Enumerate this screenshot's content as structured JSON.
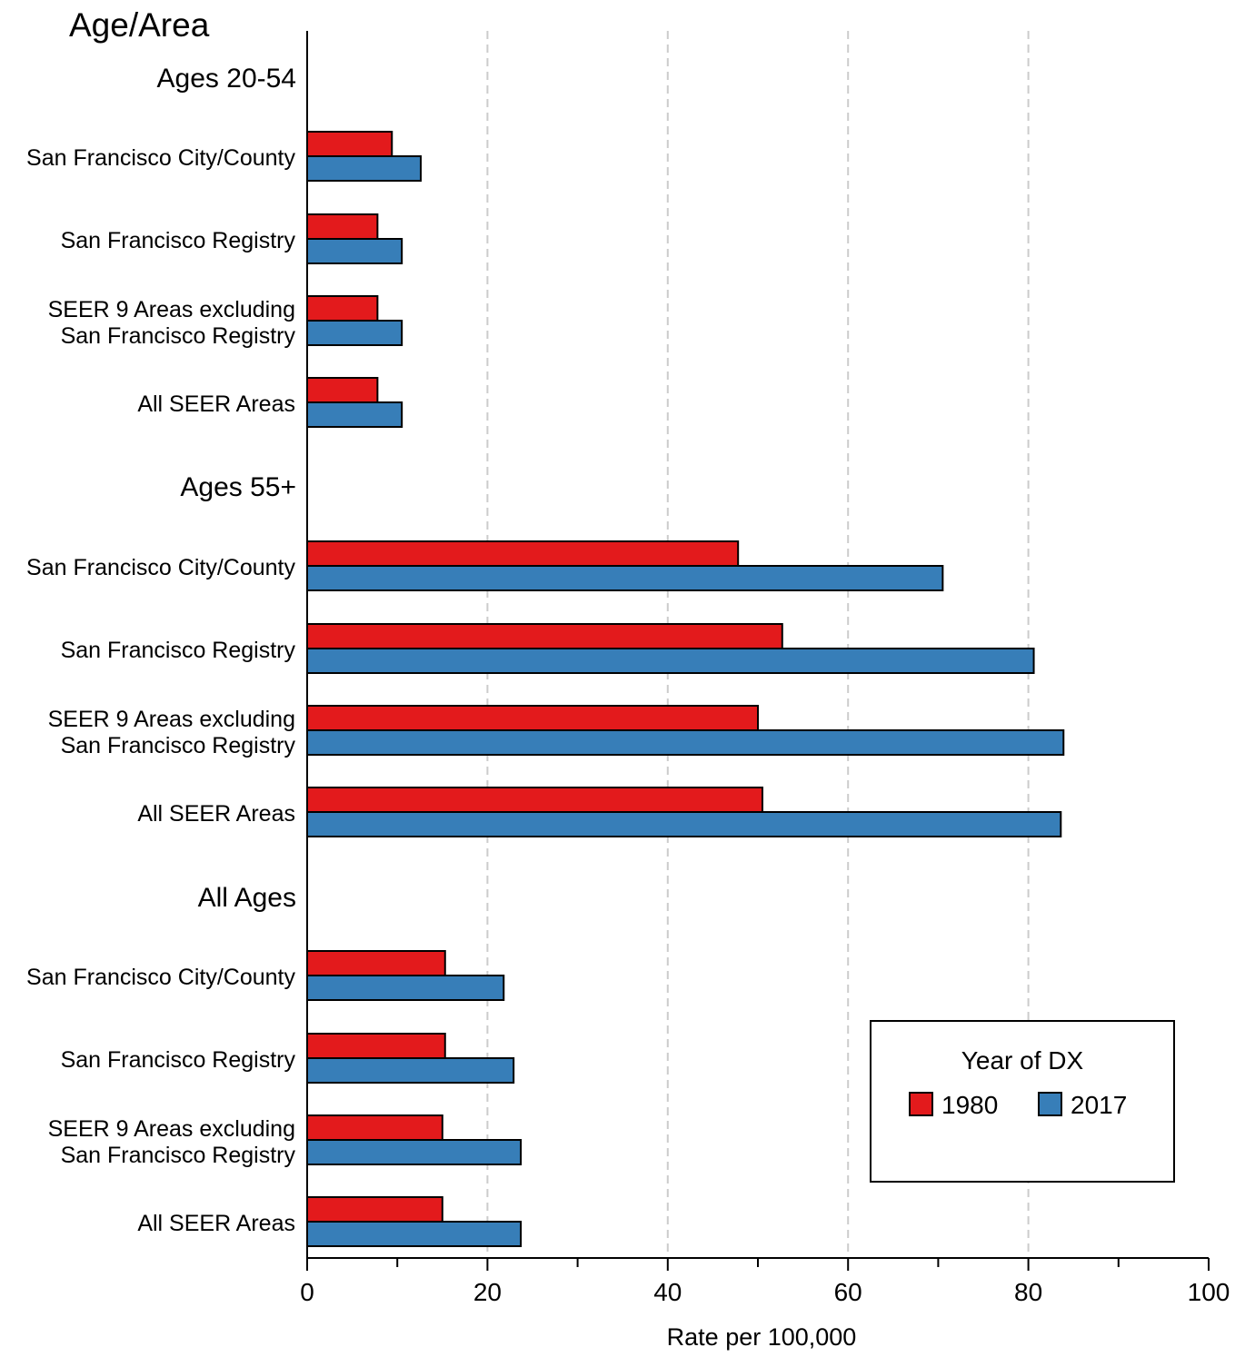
{
  "chart_data": {
    "type": "bar",
    "orientation": "horizontal",
    "y_axis_title": "Age/Area",
    "xlabel": "Rate per 100,000",
    "xlim": [
      0,
      100
    ],
    "x_ticks": [
      "0",
      "20",
      "40",
      "60",
      "80",
      "100"
    ],
    "grid": "vertical dashed",
    "legend": {
      "title": "Year of DX",
      "placement": "bottom-right",
      "entries": [
        "1980",
        "2017"
      ]
    },
    "series": [
      {
        "name": "1980",
        "color": "#e31a1c"
      },
      {
        "name": "2017",
        "color": "#377eb8"
      }
    ],
    "groups": [
      {
        "label": "Ages 20-54",
        "rows": [
          {
            "label": [
              "San Francisco City/County"
            ],
            "values": [
              9.4,
              12.6
            ]
          },
          {
            "label": [
              "San Francisco Registry"
            ],
            "values": [
              7.8,
              10.5
            ]
          },
          {
            "label": [
              "SEER 9 Areas excluding",
              "San Francisco Registry"
            ],
            "values": [
              7.8,
              10.5
            ]
          },
          {
            "label": [
              "All SEER Areas"
            ],
            "values": [
              7.8,
              10.5
            ]
          }
        ]
      },
      {
        "label": "Ages 55+",
        "rows": [
          {
            "label": [
              "San Francisco City/County"
            ],
            "values": [
              47.8,
              70.5
            ]
          },
          {
            "label": [
              "San Francisco Registry"
            ],
            "values": [
              52.7,
              80.6
            ]
          },
          {
            "label": [
              "SEER 9 Areas excluding",
              "San Francisco Registry"
            ],
            "values": [
              50.0,
              83.9
            ]
          },
          {
            "label": [
              "All SEER Areas"
            ],
            "values": [
              50.5,
              83.6
            ]
          }
        ]
      },
      {
        "label": "All Ages",
        "rows": [
          {
            "label": [
              "San Francisco City/County"
            ],
            "values": [
              15.3,
              21.8
            ]
          },
          {
            "label": [
              "San Francisco Registry"
            ],
            "values": [
              15.3,
              22.9
            ]
          },
          {
            "label": [
              "SEER 9 Areas excluding",
              "San Francisco Registry"
            ],
            "values": [
              15.0,
              23.7
            ]
          },
          {
            "label": [
              "All SEER Areas"
            ],
            "values": [
              15.0,
              23.7
            ]
          }
        ]
      }
    ]
  }
}
